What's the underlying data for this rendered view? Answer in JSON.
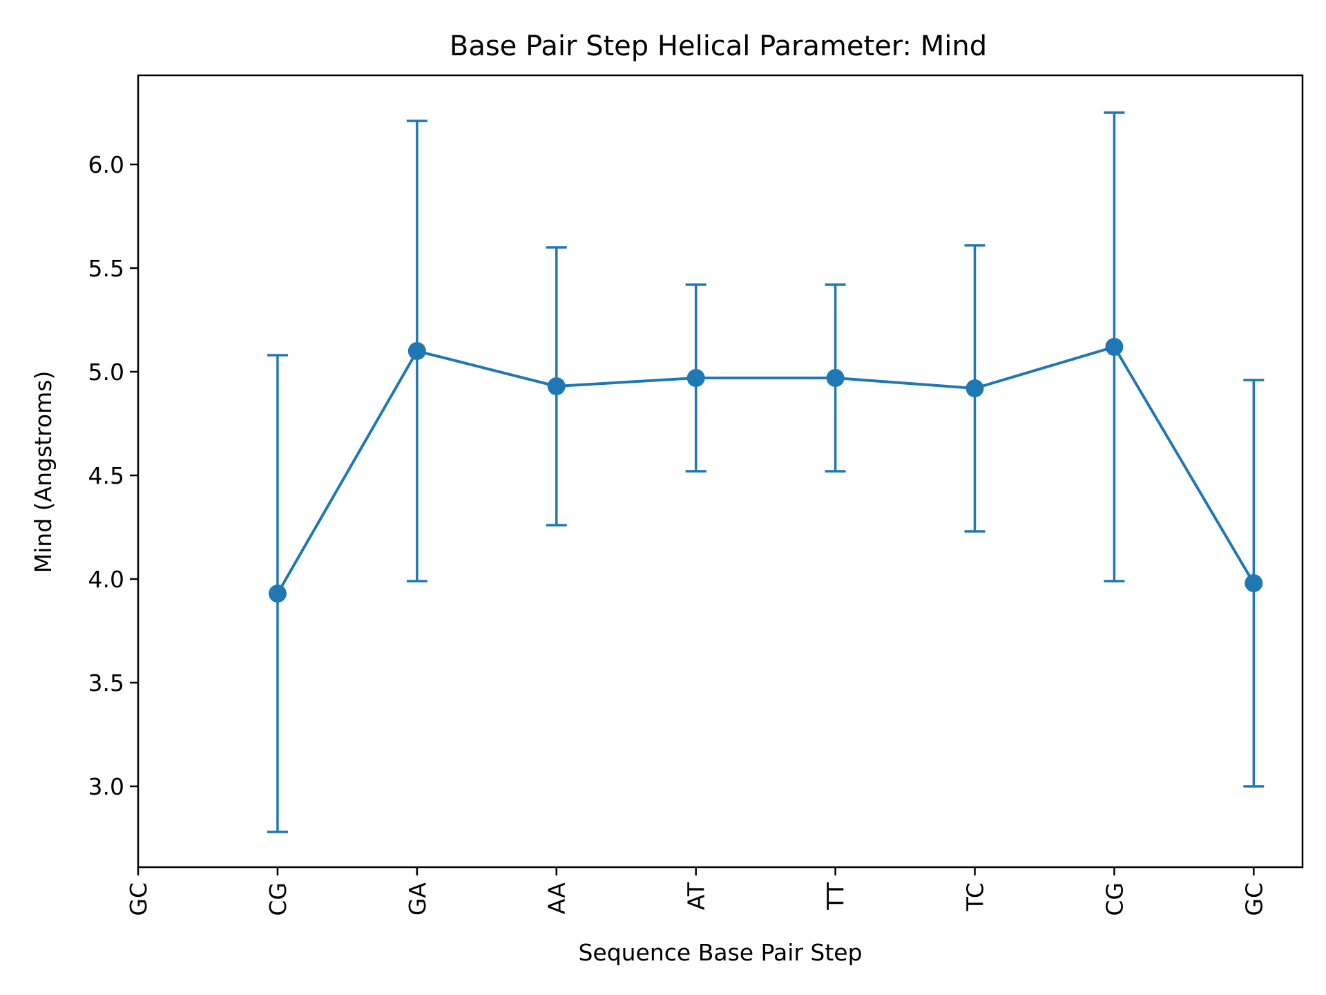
{
  "chart_data": {
    "type": "line",
    "title": "Base Pair Step Helical Parameter: Mind",
    "xlabel": "Sequence Base Pair Step",
    "ylabel": "Mind (Angstroms)",
    "categories": [
      "GC",
      "CG",
      "GA",
      "AA",
      "AT",
      "TT",
      "TC",
      "CG",
      "GC"
    ],
    "xlim": [
      0,
      8.35
    ],
    "ylim": [
      2.61,
      6.43
    ],
    "yticks": [
      "3.0",
      "3.5",
      "4.0",
      "4.5",
      "5.0",
      "5.5",
      "6.0"
    ],
    "grid": false,
    "color": "#1f77b4",
    "series": [
      {
        "x": [
          1,
          2,
          3,
          4,
          5,
          6,
          7,
          8
        ],
        "values": [
          3.93,
          5.1,
          4.93,
          4.97,
          4.97,
          4.92,
          5.12,
          3.98
        ],
        "errors": [
          1.15,
          1.11,
          0.67,
          0.45,
          0.45,
          0.69,
          1.13,
          0.98
        ]
      }
    ]
  }
}
